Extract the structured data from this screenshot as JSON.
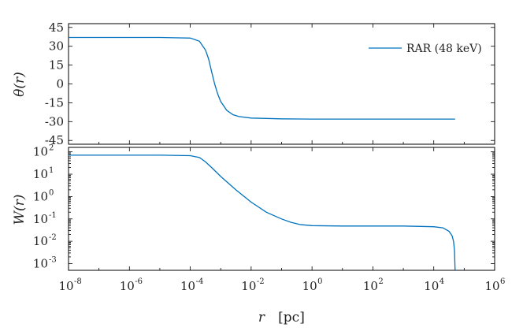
{
  "chart_data": [
    {
      "type": "line",
      "panel": "top",
      "ylabel": "θ(r)",
      "xscale": "log",
      "xlim": [
        -8,
        6
      ],
      "ylim": [
        -48,
        48
      ],
      "yticks": [
        45,
        30,
        15,
        0,
        -15,
        -30,
        -45
      ],
      "ytick_labels": [
        "45",
        "30",
        "15",
        "0",
        "-15",
        "-30",
        "-45"
      ],
      "legend_position": "top-right",
      "series": [
        {
          "name": "RAR (48 keV)",
          "color": "#0072BD",
          "x_log10": [
            -8,
            -5,
            -4,
            -3.7,
            -3.5,
            -3.4,
            -3.3,
            -3.2,
            -3.1,
            -3.0,
            -2.8,
            -2.6,
            -2.4,
            -2.0,
            -1.0,
            0,
            2,
            4,
            4.7
          ],
          "y": [
            37,
            37,
            36.5,
            34,
            27,
            20,
            10,
            0,
            -8,
            -14,
            -21,
            -24.5,
            -26,
            -27.2,
            -27.8,
            -28,
            -28,
            -28,
            -28
          ]
        }
      ]
    },
    {
      "type": "line",
      "panel": "bottom",
      "ylabel": "W(r)",
      "xlabel": "r",
      "xlabel_unit": "[pc]",
      "xscale": "log",
      "yscale": "log",
      "xlim": [
        -8,
        6
      ],
      "ylim": [
        -3.3,
        2.2
      ],
      "xtick_exponents": [
        "-8",
        "-6",
        "-4",
        "-2",
        "0",
        "2",
        "4",
        "6"
      ],
      "ytick_exponents": [
        "2",
        "1",
        "0",
        "-1",
        "-2",
        "-3"
      ],
      "series": [
        {
          "name": "RAR (48 keV)",
          "color": "#0072BD",
          "x_log10": [
            -8,
            -5,
            -4,
            -3.7,
            -3.5,
            -3.3,
            -3.0,
            -2.5,
            -2.0,
            -1.5,
            -1.0,
            -0.7,
            -0.4,
            0,
            1,
            2,
            3,
            4,
            4.3,
            4.5,
            4.6,
            4.65,
            4.68,
            4.7
          ],
          "log10_y": [
            1.85,
            1.85,
            1.83,
            1.75,
            1.55,
            1.3,
            0.9,
            0.3,
            -0.25,
            -0.7,
            -1.0,
            -1.15,
            -1.25,
            -1.3,
            -1.32,
            -1.32,
            -1.32,
            -1.35,
            -1.4,
            -1.55,
            -1.75,
            -2.0,
            -2.4,
            -3.3
          ]
        }
      ]
    }
  ]
}
